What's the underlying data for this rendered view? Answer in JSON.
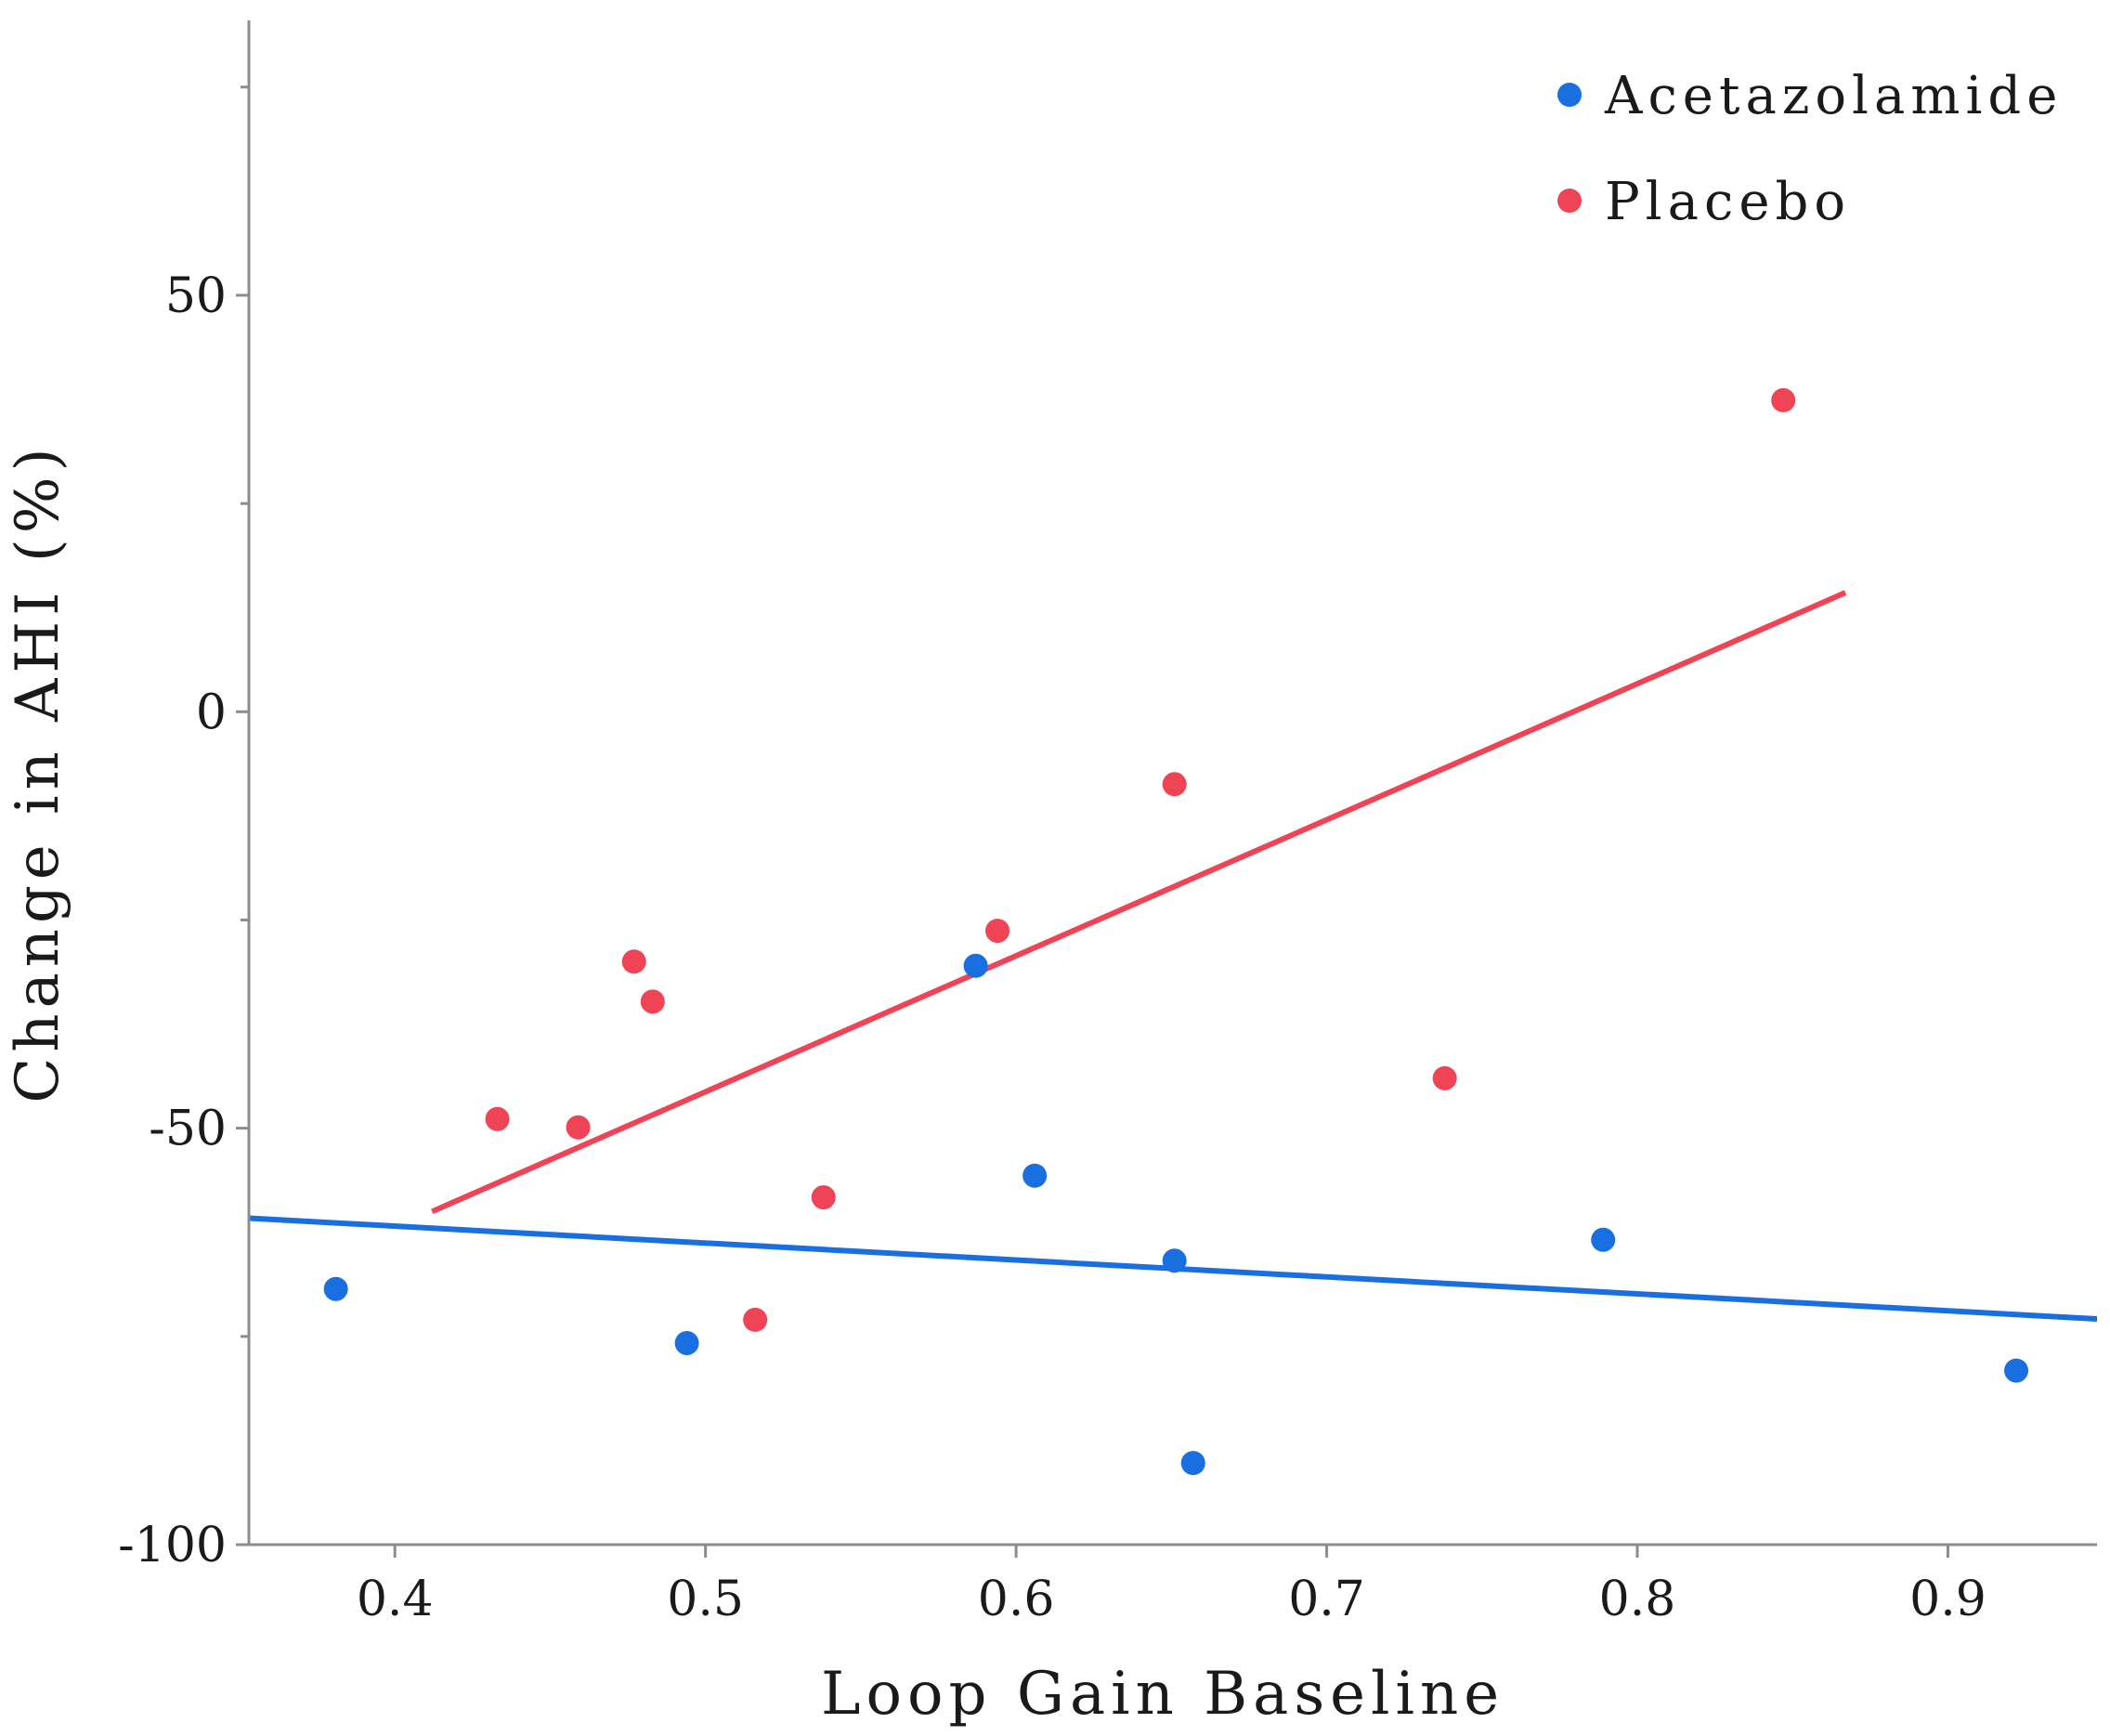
{
  "chart_data": {
    "type": "scatter",
    "title": "",
    "xlabel": "Loop Gain Baseline",
    "ylabel": "Change in AHI (%)",
    "xlim": [
      0.353,
      0.948
    ],
    "ylim": [
      -100,
      83
    ],
    "x_ticks": [
      0.4,
      0.5,
      0.6,
      0.7,
      0.8,
      0.9
    ],
    "x_tick_labels": [
      "0.4",
      "0.5",
      "0.6",
      "0.7",
      "0.8",
      "0.9"
    ],
    "y_ticks": [
      -100,
      -75,
      -50,
      -25,
      0,
      25,
      50,
      75
    ],
    "y_tick_labels": {
      "-100": "-100",
      "-50": "-50",
      "0": "0",
      "50": "50"
    },
    "legend_position": "top-right",
    "series": [
      {
        "name": "Acetazolamide",
        "color": "#1a6fe0",
        "points": [
          [
            0.381,
            -69.3
          ],
          [
            0.494,
            -75.8
          ],
          [
            0.587,
            -30.5
          ],
          [
            0.606,
            -55.7
          ],
          [
            0.651,
            -65.9
          ],
          [
            0.657,
            -90.2
          ],
          [
            0.789,
            -63.4
          ],
          [
            0.922,
            -79.1
          ]
        ],
        "trend": [
          [
            0.353,
            -60.8
          ],
          [
            0.948,
            -72.9
          ]
        ]
      },
      {
        "name": "Placebo",
        "color": "#ee4455",
        "points": [
          [
            0.433,
            -48.9
          ],
          [
            0.459,
            -49.9
          ],
          [
            0.477,
            -30.0
          ],
          [
            0.483,
            -34.8
          ],
          [
            0.516,
            -73.0
          ],
          [
            0.538,
            -58.3
          ],
          [
            0.594,
            -26.3
          ],
          [
            0.651,
            -8.7
          ],
          [
            0.738,
            -44.0
          ],
          [
            0.847,
            37.4
          ]
        ],
        "trend": [
          [
            0.412,
            -60.0
          ],
          [
            0.867,
            14.3
          ]
        ]
      }
    ]
  }
}
